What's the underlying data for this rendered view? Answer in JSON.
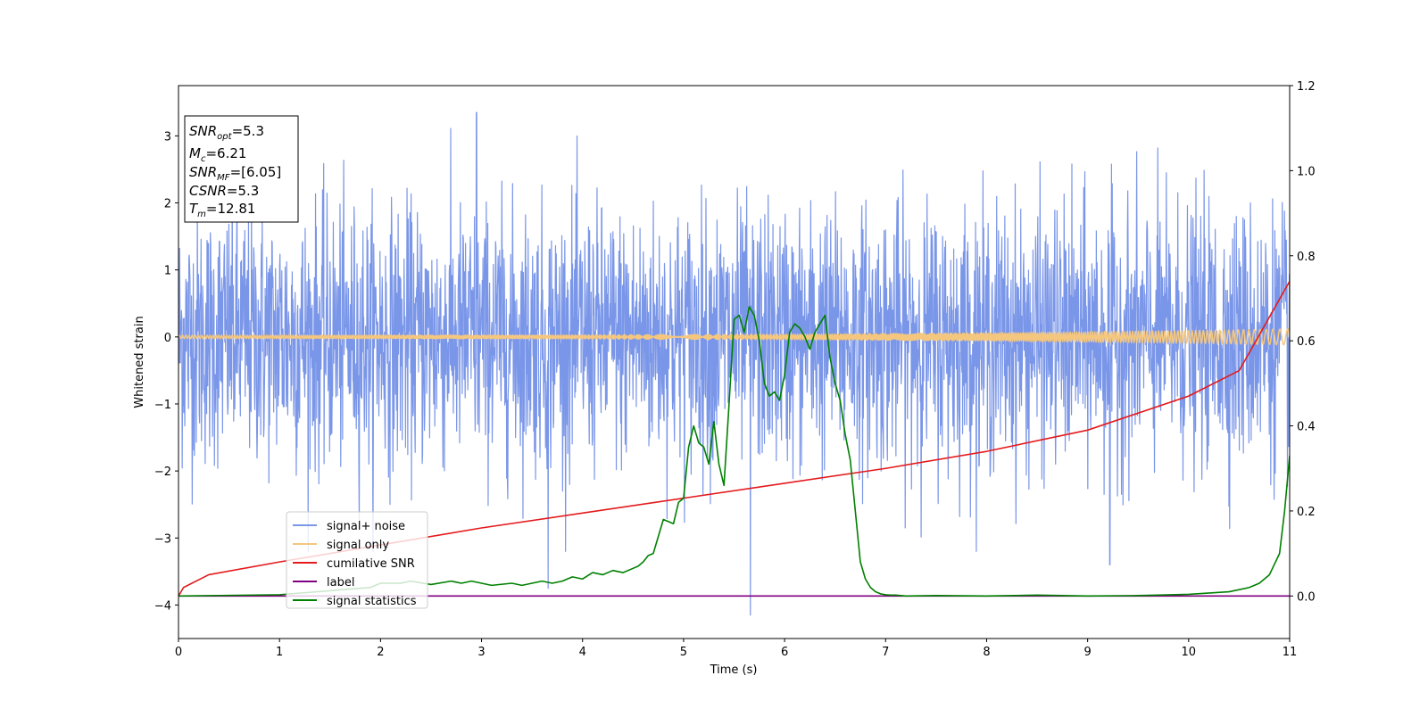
{
  "chart_data": {
    "type": "line",
    "xlabel": "Time (s)",
    "ylabel": "Whitened strain",
    "xlim": [
      0,
      11
    ],
    "ylim": [
      -4.5,
      3.75
    ],
    "y2lim": [
      -0.1,
      1.2
    ],
    "xticks": [
      "0",
      "1",
      "2",
      "3",
      "4",
      "5",
      "6",
      "7",
      "8",
      "9",
      "10",
      "11"
    ],
    "yticks": [
      "−4",
      "−3",
      "−2",
      "−1",
      "0",
      "1",
      "2",
      "3"
    ],
    "y2ticks": [
      "0.0",
      "0.2",
      "0.4",
      "0.6",
      "0.8",
      "1.0",
      "1.2"
    ],
    "legend_position": "lower-left",
    "annotation": {
      "lines": [
        {
          "main": "SNR",
          "sub": "opt",
          "value": "=5.3"
        },
        {
          "main": "M",
          "sub": "c",
          "value": "=6.21"
        },
        {
          "main": "SNR",
          "sub": "MF",
          "value": "=[6.05]"
        },
        {
          "main": "CSNR",
          "sub": "",
          "value": "=5.3"
        },
        {
          "main": "T",
          "sub": "m",
          "value": "=12.81"
        }
      ]
    },
    "series": [
      {
        "name": "signal+ noise",
        "color": "#7a96e8",
        "axis": "left",
        "kind": "noise",
        "std": 0.95,
        "extremes": [
          [
            2.95,
            3.35
          ],
          [
            5.66,
            -4.15
          ],
          [
            3.66,
            -3.75
          ],
          [
            9.22,
            -3.4
          ]
        ]
      },
      {
        "name": "signal only",
        "color": "#f5c77e",
        "axis": "left",
        "kind": "chirp",
        "amp_start": 0.025,
        "amp_end": 0.12
      },
      {
        "name": "cumilative SNR",
        "color": "#e41a1c",
        "axis": "right",
        "x": [
          0,
          0.05,
          0.3,
          1,
          2,
          3,
          4,
          5,
          6,
          7,
          8,
          9,
          10,
          10.5,
          11
        ],
        "y": [
          0.0,
          0.02,
          0.05,
          0.08,
          0.12,
          0.16,
          0.195,
          0.23,
          0.265,
          0.3,
          0.34,
          0.39,
          0.47,
          0.53,
          0.74
        ]
      },
      {
        "name": "label",
        "color": "#800080",
        "axis": "right",
        "x": [
          0,
          11
        ],
        "y": [
          0,
          0
        ]
      },
      {
        "name": "signal statistics",
        "color": "#008000",
        "axis": "right",
        "x": [
          0,
          1,
          1.9,
          2,
          2.2,
          2.3,
          2.5,
          2.7,
          2.8,
          2.9,
          3.1,
          3.3,
          3.4,
          3.6,
          3.7,
          3.8,
          3.9,
          4.0,
          4.1,
          4.2,
          4.3,
          4.4,
          4.5,
          4.55,
          4.6,
          4.65,
          4.7,
          4.8,
          4.9,
          4.95,
          5.0,
          5.05,
          5.1,
          5.15,
          5.2,
          5.25,
          5.3,
          5.35,
          5.4,
          5.45,
          5.5,
          5.55,
          5.6,
          5.65,
          5.7,
          5.75,
          5.8,
          5.85,
          5.9,
          5.95,
          6.0,
          6.05,
          6.1,
          6.15,
          6.2,
          6.25,
          6.3,
          6.35,
          6.4,
          6.45,
          6.5,
          6.55,
          6.6,
          6.65,
          6.7,
          6.75,
          6.8,
          6.85,
          6.9,
          6.95,
          7.0,
          7.05,
          7.1,
          7.2,
          7.5,
          8,
          8.5,
          9,
          9.5,
          10,
          10.4,
          10.6,
          10.7,
          10.8,
          10.9,
          10.95,
          11.0
        ],
        "y": [
          0,
          0.003,
          0.02,
          0.03,
          0.03,
          0.035,
          0.027,
          0.035,
          0.03,
          0.035,
          0.025,
          0.03,
          0.025,
          0.035,
          0.03,
          0.035,
          0.045,
          0.04,
          0.055,
          0.05,
          0.06,
          0.055,
          0.065,
          0.07,
          0.08,
          0.095,
          0.1,
          0.18,
          0.17,
          0.22,
          0.23,
          0.35,
          0.4,
          0.36,
          0.35,
          0.31,
          0.41,
          0.31,
          0.26,
          0.45,
          0.65,
          0.66,
          0.62,
          0.68,
          0.66,
          0.6,
          0.5,
          0.47,
          0.48,
          0.46,
          0.52,
          0.62,
          0.64,
          0.63,
          0.61,
          0.58,
          0.62,
          0.64,
          0.66,
          0.56,
          0.5,
          0.46,
          0.38,
          0.32,
          0.2,
          0.08,
          0.04,
          0.02,
          0.01,
          0.005,
          0.003,
          0.002,
          0.002,
          0.0,
          0.001,
          0.0,
          0.002,
          0.0,
          0.001,
          0.004,
          0.01,
          0.02,
          0.03,
          0.05,
          0.1,
          0.2,
          0.33
        ]
      }
    ]
  }
}
